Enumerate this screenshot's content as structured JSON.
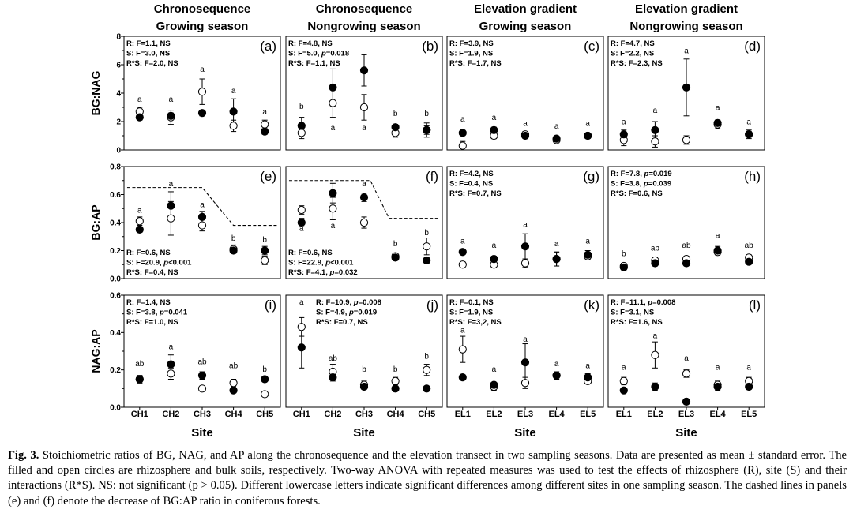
{
  "column_titles": [
    [
      "Chronosequence",
      "Growing season"
    ],
    [
      "Chronosequence",
      "Nongrowing season"
    ],
    [
      "Elevation gradient",
      "Growing season"
    ],
    [
      "Elevation gradient",
      "Nongrowing season"
    ]
  ],
  "x_axis_title": "Site",
  "caption": {
    "label": "Fig. 3.",
    "text": "Stoichiometric ratios of BG, NAG, and AP along the chronosequence and the elevation transect in two sampling seasons. Data are presented as mean ± standard error. The filled and open circles are rhizosphere and bulk soils, respectively. Two-way ANOVA with repeated measures was used to test the effects of rhizosphere (R), site (S) and their interactions (R*S). NS: not significant (p > 0.05). Different lowercase letters indicate significant differences among different sites in one sampling season. The dashed lines in panels (e) and (f) denote the decrease of BG:AP ratio in coniferous forests."
  },
  "chart_data": {
    "type": "scatter",
    "legend": {
      "filled": "rhizosphere",
      "open": "bulk soil"
    },
    "rows": [
      {
        "ylabel": "BG:NAG",
        "ylim": [
          0,
          8
        ],
        "ticks": [
          "0",
          "2",
          "4",
          "6",
          "8"
        ],
        "tick_values": [
          0,
          2,
          4,
          6,
          8
        ]
      },
      {
        "ylabel": "BG:AP",
        "ylim": [
          0,
          0.8
        ],
        "ticks": [
          "0.0",
          "0.2",
          "0.4",
          "0.6",
          "0.8"
        ],
        "tick_values": [
          0,
          0.2,
          0.4,
          0.6,
          0.8
        ]
      },
      {
        "ylabel": "NAG:AP",
        "ylim": [
          0,
          0.6
        ],
        "ticks": [
          "0.0",
          "0.2",
          "0.4",
          "0.6"
        ],
        "tick_values": [
          0,
          0.2,
          0.4,
          0.6
        ]
      }
    ],
    "columns": [
      {
        "x": [
          "CH1",
          "CH2",
          "CH3",
          "CH4",
          "CH5"
        ]
      },
      {
        "x": [
          "CH1",
          "CH2",
          "CH3",
          "CH4",
          "CH5"
        ]
      },
      {
        "x": [
          "EL1",
          "EL2",
          "EL3",
          "EL4",
          "EL5"
        ]
      },
      {
        "x": [
          "EL1",
          "EL2",
          "EL3",
          "EL4",
          "EL5"
        ]
      }
    ],
    "panels": [
      {
        "label": "(a)",
        "row": 0,
        "col": 0,
        "stats_pos": "top",
        "stats": [
          "R: F=1.1, NS",
          "S: F=3.0, NS",
          "R*S: F=2.0, NS"
        ],
        "filled": [
          2.3,
          2.4,
          2.6,
          2.7,
          1.3
        ],
        "filled_err": [
          0.2,
          0.2,
          0.2,
          0.9,
          0.2
        ],
        "open": [
          2.7,
          2.3,
          4.1,
          1.7,
          1.8
        ],
        "open_err": [
          0.3,
          0.5,
          0.9,
          0.4,
          0.3
        ],
        "letters": [
          "a",
          "a",
          "a",
          "a",
          "a"
        ],
        "letter_y": [
          3.4,
          3.4,
          5.5,
          4.0,
          2.5
        ]
      },
      {
        "label": "(b)",
        "row": 0,
        "col": 1,
        "stats_pos": "top",
        "stats": [
          "R: F=4.8, NS",
          "S: F=5.0, p=0.018",
          "R*S: F=1.1, NS"
        ],
        "filled": [
          1.7,
          4.4,
          5.6,
          1.6,
          1.4
        ],
        "filled_err": [
          0.6,
          1.3,
          1.1,
          0.2,
          0.3
        ],
        "open": [
          1.2,
          3.3,
          3.0,
          1.2,
          1.4
        ],
        "open_err": [
          0.4,
          1.0,
          0.9,
          0.3,
          0.5
        ],
        "letters": [
          "b",
          "a",
          "a",
          "b",
          "b"
        ],
        "letter_y": [
          2.9,
          1.4,
          1.4,
          2.4,
          2.4
        ]
      },
      {
        "label": "(c)",
        "row": 0,
        "col": 2,
        "stats_pos": "top",
        "stats": [
          "R: F=3.9, NS",
          "S: F=1.9, NS",
          "R*S: F=1.7, NS"
        ],
        "filled": [
          1.2,
          1.4,
          1.0,
          0.8,
          1.0
        ],
        "filled_err": [
          0.1,
          0.2,
          0.1,
          0.1,
          0.1
        ],
        "open": [
          0.3,
          1.0,
          1.1,
          0.7,
          1.0
        ],
        "open_err": [
          0.3,
          0.2,
          0.2,
          0.2,
          0.1
        ],
        "letters": [
          "a",
          "a",
          "a",
          "a",
          "a"
        ],
        "letter_y": [
          2.0,
          2.1,
          1.7,
          1.5,
          1.7
        ]
      },
      {
        "label": "(d)",
        "row": 0,
        "col": 3,
        "stats_pos": "top",
        "stats": [
          "R: F=4.7, NS",
          "S: F=2.2, NS",
          "R*S: F=2.3, NS"
        ],
        "filled": [
          1.1,
          1.4,
          4.4,
          1.9,
          1.1
        ],
        "filled_err": [
          0.3,
          0.6,
          2.0,
          0.2,
          0.2
        ],
        "open": [
          0.7,
          0.6,
          0.7,
          1.8,
          1.1
        ],
        "open_err": [
          0.4,
          0.4,
          0.3,
          0.3,
          0.3
        ],
        "letters": [
          "a",
          "a",
          "a",
          "a",
          "a"
        ],
        "letter_y": [
          1.8,
          2.6,
          6.8,
          2.8,
          1.8
        ]
      },
      {
        "label": "(e)",
        "row": 1,
        "col": 0,
        "stats_pos": "bottom",
        "stats": [
          "R: F=0.6, NS",
          "S: F=20.9, p<0.001",
          "R*S: F=0.4, NS"
        ],
        "filled": [
          0.35,
          0.52,
          0.44,
          0.2,
          0.2
        ],
        "filled_err": [
          0.02,
          0.1,
          0.04,
          0.02,
          0.03
        ],
        "open": [
          0.41,
          0.43,
          0.38,
          0.21,
          0.13
        ],
        "open_err": [
          0.03,
          0.12,
          0.04,
          0.03,
          0.03
        ],
        "letters": [
          "a",
          "a",
          "a",
          "b",
          "b"
        ],
        "letter_y": [
          0.47,
          0.66,
          0.51,
          0.27,
          0.26
        ],
        "dashed_line": {
          "x": [
            0.6,
            3.0,
            4.0,
            5.4
          ],
          "y": [
            0.65,
            0.65,
            0.38,
            0.38
          ]
        }
      },
      {
        "label": "(f)",
        "row": 1,
        "col": 1,
        "stats_pos": "bottom",
        "stats": [
          "R: F=0.6, NS",
          "S: F=22.9, p<0.001",
          "R*S: F=4.1, p=0.032"
        ],
        "filled": [
          0.4,
          0.61,
          0.58,
          0.15,
          0.13
        ],
        "filled_err": [
          0.03,
          0.07,
          0.03,
          0.02,
          0.02
        ],
        "open": [
          0.49,
          0.5,
          0.4,
          0.16,
          0.23
        ],
        "open_err": [
          0.03,
          0.08,
          0.04,
          0.02,
          0.06
        ],
        "letters": [
          "a",
          "a",
          "a",
          "b",
          "b"
        ],
        "letter_y": [
          0.34,
          0.36,
          0.66,
          0.23,
          0.31
        ],
        "dashed_line": {
          "x": [
            0.6,
            3.2,
            3.8,
            5.4
          ],
          "y": [
            0.7,
            0.7,
            0.43,
            0.43
          ]
        }
      },
      {
        "label": "(g)",
        "row": 1,
        "col": 2,
        "stats_pos": "top",
        "stats": [
          "R: F=4.2, NS",
          "S: F=0.4, NS",
          "R*S: F=0.7, NS"
        ],
        "filled": [
          0.19,
          0.14,
          0.23,
          0.14,
          0.17
        ],
        "filled_err": [
          0.01,
          0.02,
          0.09,
          0.05,
          0.03
        ],
        "open": [
          0.1,
          0.1,
          0.11,
          0.14,
          0.16
        ],
        "open_err": [
          0.02,
          0.02,
          0.03,
          0.05,
          0.02
        ],
        "letters": [
          "a",
          "a",
          "a",
          "a",
          "a"
        ],
        "letter_y": [
          0.25,
          0.22,
          0.37,
          0.23,
          0.25
        ]
      },
      {
        "label": "(h)",
        "row": 1,
        "col": 3,
        "stats_pos": "top",
        "stats": [
          "R: F=7.8, p=0.019",
          "S: F=3.8, p=0.039",
          "R*S: F=0.6, NS"
        ],
        "filled": [
          0.08,
          0.11,
          0.11,
          0.2,
          0.12
        ],
        "filled_err": [
          0.01,
          0.02,
          0.01,
          0.03,
          0.01
        ],
        "open": [
          0.09,
          0.13,
          0.14,
          0.19,
          0.15
        ],
        "open_err": [
          0.02,
          0.02,
          0.02,
          0.02,
          0.02
        ],
        "letters": [
          "b",
          "ab",
          "ab",
          "a",
          "ab"
        ],
        "letter_y": [
          0.16,
          0.2,
          0.22,
          0.29,
          0.22
        ]
      },
      {
        "label": "(i)",
        "row": 2,
        "col": 0,
        "stats_pos": "top",
        "stats": [
          "R: F=1.4, NS",
          "S: F=3.8, p=0.041",
          "R*S: F=1.0, NS"
        ],
        "filled": [
          0.15,
          0.23,
          0.17,
          0.09,
          0.15
        ],
        "filled_err": [
          0.02,
          0.05,
          0.02,
          0.01,
          0.01
        ],
        "open": [
          0.15,
          0.18,
          0.1,
          0.13,
          0.07
        ],
        "open_err": [
          0.02,
          0.03,
          0.01,
          0.02,
          0.01
        ],
        "letters": [
          "ab",
          "a",
          "ab",
          "ab",
          "b"
        ],
        "letter_y": [
          0.22,
          0.31,
          0.23,
          0.21,
          0.19
        ]
      },
      {
        "label": "(j)",
        "row": 2,
        "col": 1,
        "stats_pos": "top-right",
        "stats": [
          "R: F=10.9, p=0.008",
          "S: F=4.9, p=0.019",
          "R*S: F=0.7, NS"
        ],
        "filled": [
          0.32,
          0.16,
          0.11,
          0.1,
          0.1
        ],
        "filled_err": [
          0.11,
          0.02,
          0.01,
          0.01,
          0.01
        ],
        "open": [
          0.43,
          0.19,
          0.12,
          0.14,
          0.2
        ],
        "open_err": [
          0.05,
          0.04,
          0.02,
          0.02,
          0.03
        ],
        "letters": [
          "a",
          "ab",
          "b",
          "b",
          "b"
        ],
        "letter_y": [
          0.55,
          0.25,
          0.19,
          0.19,
          0.26
        ]
      },
      {
        "label": "(k)",
        "row": 2,
        "col": 2,
        "stats_pos": "top",
        "stats": [
          "R: F=0.1, NS",
          "S: F=1.9, NS",
          "R*S: F=3,2, NS"
        ],
        "filled": [
          0.16,
          0.12,
          0.24,
          0.17,
          0.16
        ],
        "filled_err": [
          0.01,
          0.01,
          0.1,
          0.02,
          0.02
        ],
        "open": [
          0.31,
          0.11,
          0.13,
          0.17,
          0.14
        ],
        "open_err": [
          0.07,
          0.02,
          0.03,
          0.02,
          0.01
        ],
        "letters": [
          "a",
          "a",
          "a",
          "a",
          "a"
        ],
        "letter_y": [
          0.4,
          0.19,
          0.35,
          0.22,
          0.21
        ]
      },
      {
        "label": "(l)",
        "row": 2,
        "col": 3,
        "stats_pos": "top",
        "stats": [
          "R: F=11.1, p=0.008",
          "S: F=3.1, NS",
          "R*S: F=1.6, NS"
        ],
        "filled": [
          0.09,
          0.11,
          0.03,
          0.11,
          0.11
        ],
        "filled_err": [
          0.01,
          0.02,
          0.01,
          0.02,
          0.01
        ],
        "open": [
          0.14,
          0.28,
          0.18,
          0.12,
          0.14
        ],
        "open_err": [
          0.02,
          0.07,
          0.02,
          0.02,
          0.02
        ],
        "letters": [
          "a",
          "a",
          "a",
          "a",
          "a"
        ],
        "letter_y": [
          0.2,
          0.37,
          0.25,
          0.2,
          0.2
        ]
      }
    ]
  }
}
